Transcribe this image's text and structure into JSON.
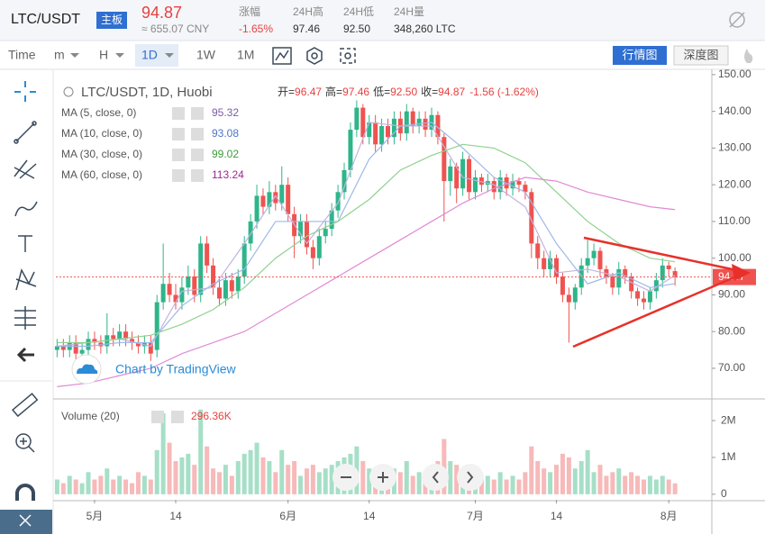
{
  "header": {
    "symbol": "LTC/USDT",
    "badge": "主板",
    "price": "94.87",
    "cny": "≈ 655.07 CNY",
    "stats": [
      {
        "label": "涨幅",
        "value": "-1.65%"
      },
      {
        "label": "24H高",
        "value": "97.46"
      },
      {
        "label": "24H低",
        "value": "92.50"
      },
      {
        "label": "24H量",
        "value": "348,260 LTC"
      }
    ]
  },
  "toolbar": {
    "items": [
      "Time",
      "m",
      "H",
      "1D",
      "1W",
      "1M"
    ],
    "buttons": [
      "行情图",
      "深度图"
    ]
  },
  "chart_data": {
    "type": "candlestick",
    "title": "LTC/USDT, 1D, Huobi",
    "ohlc": [
      {
        "label": "开=",
        "value": "96.47"
      },
      {
        "label": "高=",
        "value": "97.46"
      },
      {
        "label": "低=",
        "value": "92.50"
      },
      {
        "label": "收=",
        "value": "94.87"
      }
    ],
    "change": "-1.56 (-1.62%)",
    "watermark": "Chart by TradingView",
    "up_color": "#2eb58a",
    "down_color": "#ef5350",
    "open": [
      75,
      76,
      75,
      77,
      74,
      75,
      78,
      77,
      76,
      79,
      78,
      80,
      78,
      77,
      76,
      77,
      75,
      88,
      93,
      90,
      88,
      92,
      95,
      90,
      104,
      98,
      92,
      89,
      94,
      91,
      95,
      104,
      110,
      117,
      114,
      118,
      115,
      120,
      112,
      106,
      110,
      103,
      100,
      106,
      108,
      113,
      118,
      124,
      135,
      141,
      133,
      137,
      131,
      136,
      133,
      138,
      134,
      140,
      136,
      138,
      135,
      139,
      133,
      121,
      125,
      119,
      127,
      118,
      122,
      120,
      121,
      118,
      122,
      119,
      121,
      120,
      118,
      104,
      100,
      97,
      100,
      95,
      90,
      88,
      92,
      98,
      100,
      102,
      97,
      95,
      92,
      97,
      95,
      91,
      89,
      88,
      91,
      94,
      98,
      96.47
    ],
    "high": [
      78,
      78,
      79,
      79,
      77,
      80,
      80,
      79,
      85,
      81,
      82,
      82,
      80,
      79,
      79,
      79,
      90,
      104,
      96,
      93,
      95,
      98,
      97,
      106,
      106,
      100,
      95,
      96,
      96,
      97,
      106,
      112,
      120,
      119,
      121,
      120,
      125,
      122,
      114,
      112,
      112,
      105,
      108,
      110,
      115,
      120,
      126,
      137,
      143,
      142,
      139,
      139,
      138,
      138,
      140,
      140,
      142,
      141,
      140,
      140,
      141,
      140,
      134,
      127,
      126,
      129,
      128,
      124,
      123,
      123,
      122,
      124,
      123,
      123,
      122,
      121,
      119,
      106,
      102,
      102,
      101,
      96,
      92,
      93,
      100,
      105,
      104,
      103,
      98,
      96,
      99,
      98,
      96,
      92,
      91,
      92,
      96,
      100,
      99,
      97.46
    ],
    "low": [
      73,
      73,
      73,
      72,
      72,
      73,
      75,
      74,
      74,
      76,
      76,
      76,
      75,
      74,
      74,
      72,
      73,
      86,
      88,
      86,
      86,
      90,
      88,
      88,
      96,
      90,
      87,
      87,
      89,
      89,
      93,
      102,
      108,
      112,
      112,
      113,
      113,
      110,
      100,
      104,
      101,
      97,
      98,
      104,
      106,
      111,
      116,
      122,
      133,
      131,
      131,
      129,
      129,
      131,
      131,
      132,
      132,
      134,
      134,
      133,
      133,
      131,
      110,
      117,
      115,
      117,
      116,
      116,
      118,
      118,
      116,
      116,
      117,
      117,
      118,
      116,
      100,
      97,
      95,
      95,
      93,
      88,
      77,
      86,
      90,
      96,
      98,
      95,
      93,
      90,
      90,
      93,
      89,
      87,
      86,
      86,
      89,
      92,
      95,
      92.5
    ],
    "close": [
      76,
      75,
      77,
      74,
      75,
      78,
      77,
      76,
      79,
      78,
      80,
      78,
      77,
      76,
      77,
      74,
      88,
      93,
      90,
      88,
      92,
      95,
      90,
      104,
      98,
      92,
      89,
      94,
      91,
      95,
      104,
      110,
      117,
      114,
      118,
      115,
      120,
      112,
      106,
      110,
      103,
      100,
      106,
      108,
      113,
      118,
      124,
      135,
      141,
      133,
      137,
      131,
      136,
      133,
      138,
      134,
      140,
      136,
      138,
      135,
      139,
      133,
      121,
      125,
      119,
      127,
      118,
      122,
      120,
      121,
      118,
      122,
      119,
      121,
      120,
      118,
      104,
      100,
      97,
      100,
      95,
      90,
      88,
      92,
      98,
      100,
      102,
      97,
      95,
      92,
      97,
      95,
      91,
      89,
      88,
      91,
      94,
      98,
      97,
      94.87
    ],
    "xlim": [
      -0.2,
      104.9
    ],
    "xticks": [
      {
        "value": 6,
        "label": "5月"
      },
      {
        "value": 19,
        "label": "14"
      },
      {
        "value": 37,
        "label": "6月"
      },
      {
        "value": 50,
        "label": "14"
      },
      {
        "value": 67,
        "label": "7月"
      },
      {
        "value": 80,
        "label": "14"
      },
      {
        "value": 98,
        "label": "8月"
      }
    ],
    "ylim": [
      61.9,
      151.2
    ],
    "yticks": [
      {
        "value": 70,
        "label": "70.00"
      },
      {
        "value": 80,
        "label": "80.00"
      },
      {
        "value": 90,
        "label": "90.00"
      },
      {
        "value": 100,
        "label": "100.00"
      },
      {
        "value": 110,
        "label": "110.00"
      },
      {
        "value": 120,
        "label": "120.00"
      },
      {
        "value": 130,
        "label": "130.00"
      },
      {
        "value": 140,
        "label": "140.00"
      },
      {
        "value": 150,
        "label": "150.00"
      }
    ],
    "series": [
      {
        "name": "MA (5, close, 0)",
        "color": "#c3b3e0",
        "label_color": "#7d5ca6",
        "x": [
          0,
          5,
          10,
          15,
          20,
          25,
          30,
          35,
          40,
          45,
          50,
          55,
          60,
          65,
          70,
          75,
          80,
          85,
          90,
          95,
          99
        ],
        "values": [
          76,
          77,
          78,
          76,
          91,
          92,
          104,
          117,
          104,
          115,
          137,
          136,
          136,
          122,
          120,
          114,
          96,
          97,
          95,
          91,
          95.32
        ]
      },
      {
        "name": "MA (10, close, 0)",
        "color": "#9fb8e8",
        "label_color": "#4f74c4",
        "x": [
          0,
          5,
          10,
          15,
          20,
          25,
          30,
          35,
          40,
          45,
          50,
          55,
          60,
          65,
          70,
          75,
          80,
          85,
          90,
          95,
          99
        ],
        "values": [
          76,
          76,
          77,
          77,
          87,
          93,
          97,
          110,
          110,
          110,
          127,
          136,
          137,
          130,
          122,
          118,
          104,
          93,
          96,
          92,
          93.08
        ]
      },
      {
        "name": "MA (30, close, 0)",
        "color": "#8fd18f",
        "label_color": "#3e9a3e",
        "x": [
          0,
          5,
          10,
          15,
          20,
          25,
          30,
          35,
          40,
          45,
          50,
          55,
          60,
          65,
          70,
          75,
          80,
          85,
          90,
          95,
          99
        ],
        "values": [
          77,
          77,
          78,
          79,
          82,
          86,
          92,
          100,
          106,
          110,
          116,
          124,
          128,
          131,
          130,
          126,
          118,
          110,
          104,
          100,
          99.02
        ]
      },
      {
        "name": "MA (60, close, 0)",
        "color": "#e08ad6",
        "label_color": "#9c2a90",
        "x": [
          0,
          5,
          10,
          15,
          20,
          25,
          30,
          35,
          40,
          45,
          50,
          55,
          60,
          65,
          70,
          75,
          80,
          85,
          90,
          95,
          99
        ],
        "values": [
          65,
          66,
          68,
          70,
          74,
          77,
          80,
          85,
          90,
          95,
          100,
          105,
          110,
          115,
          119,
          122,
          121,
          118,
          116,
          114,
          113.24
        ]
      }
    ],
    "volume": {
      "name": "Volume (20)",
      "last_label": "296.36K",
      "up_color": "#a6dfc7",
      "down_color": "#f7b9b9",
      "values": [
        0.4,
        0.3,
        0.5,
        0.4,
        0.3,
        0.6,
        0.4,
        0.5,
        0.7,
        0.4,
        0.5,
        0.4,
        0.3,
        0.6,
        0.5,
        0.4,
        1.2,
        2.2,
        1.4,
        0.9,
        1.0,
        1.1,
        0.8,
        2.3,
        1.3,
        0.7,
        0.6,
        0.8,
        0.5,
        0.9,
        1.1,
        1.2,
        1.4,
        1.0,
        0.9,
        0.6,
        1.2,
        0.8,
        0.9,
        0.5,
        0.7,
        0.8,
        0.6,
        0.7,
        0.8,
        0.9,
        1.0,
        1.1,
        1.3,
        0.9,
        0.7,
        0.6,
        0.8,
        0.5,
        0.7,
        0.6,
        0.9,
        0.5,
        0.6,
        0.5,
        0.7,
        0.9,
        1.5,
        0.9,
        0.8,
        0.7,
        0.6,
        0.5,
        0.4,
        0.5,
        0.4,
        0.6,
        0.4,
        0.5,
        0.4,
        0.6,
        1.3,
        0.9,
        0.7,
        0.6,
        0.8,
        1.1,
        1.0,
        0.7,
        0.9,
        1.2,
        0.6,
        0.8,
        0.5,
        0.6,
        0.7,
        0.5,
        0.6,
        0.5,
        0.4,
        0.5,
        0.4,
        0.5,
        0.4,
        0.29636
      ],
      "ylim": [
        -0.15,
        2.54
      ],
      "yticks": [
        0,
        {
          "value": 1,
          "label": "1M"
        },
        {
          "value": 2,
          "label": "2M"
        }
      ]
    }
  }
}
